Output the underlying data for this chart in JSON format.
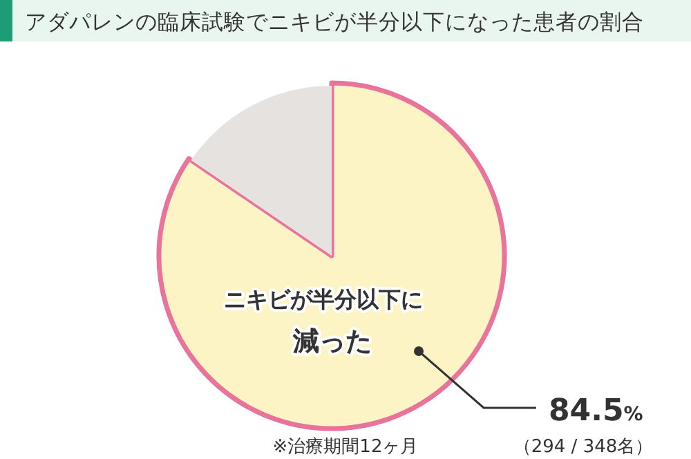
{
  "chart_data": {
    "type": "pie",
    "title": "アダパレンの臨床試験でニキビが半分以下になった患者の割合",
    "categories": [
      "ニキビが半分以下に減った",
      null
    ],
    "values": [
      84.5,
      15.5
    ],
    "colors": [
      "#fdf4c6",
      "#e6e2e0"
    ],
    "value_labels": [
      "84.5%",
      null
    ],
    "annotations": [
      "（294 / 348名）",
      "※治療期間12ヶ月"
    ]
  }
}
